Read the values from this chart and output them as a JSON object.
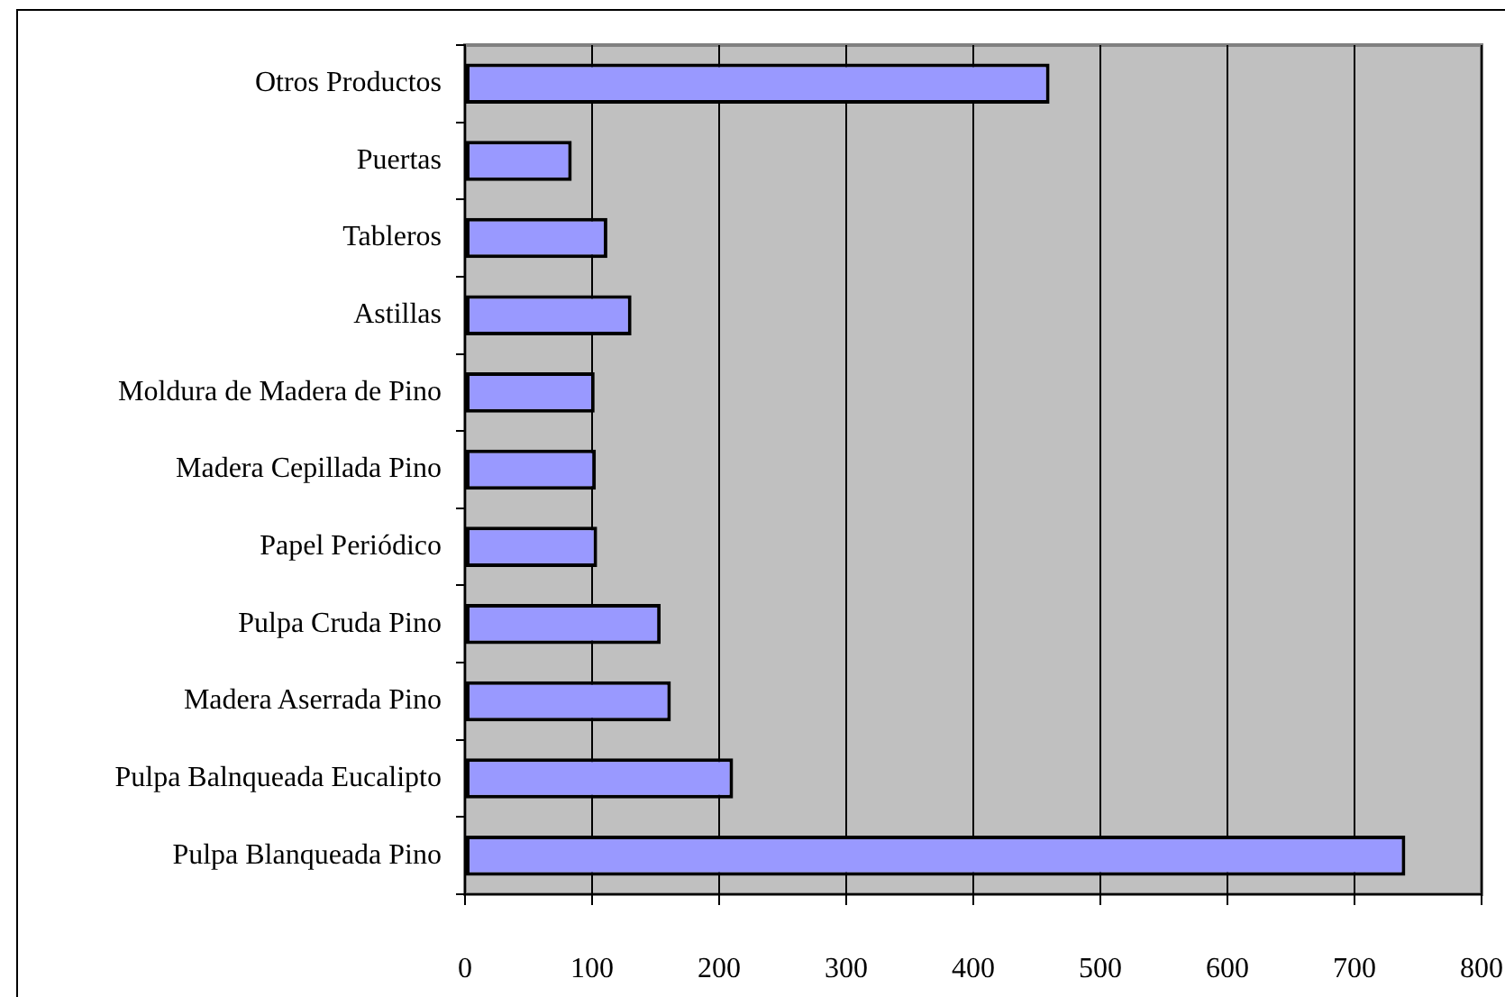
{
  "chart_data": {
    "type": "bar",
    "orientation": "horizontal",
    "categories": [
      "Otros Productos",
      "Puertas",
      "Tableros",
      "Astillas",
      "Moldura de Madera de Pino",
      "Madera Cepillada Pino",
      "Papel Periódico",
      "Pulpa Cruda Pino",
      "Madera Aserrada Pino",
      "Pulpa Balnqueada Eucalipto",
      "Pulpa Blanqueada Pino"
    ],
    "values": [
      460,
      84,
      112,
      131,
      102,
      103,
      104,
      154,
      162,
      211,
      740
    ],
    "color": "#9999ff",
    "xlim": [
      0,
      800
    ],
    "xticks": [
      0,
      100,
      200,
      300,
      400,
      500,
      600,
      700,
      800
    ],
    "grid": "x",
    "legend": false
  }
}
